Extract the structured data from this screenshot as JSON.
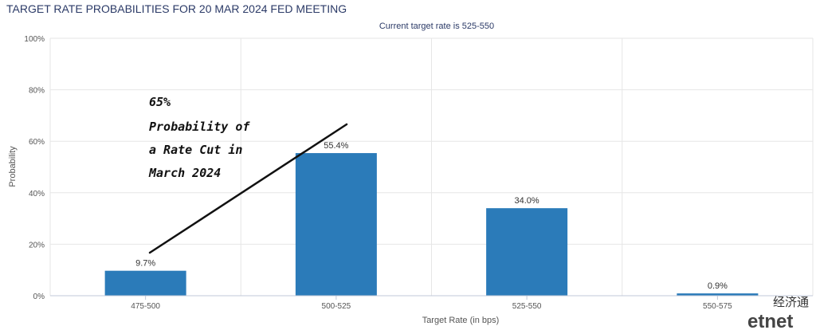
{
  "chart_data": {
    "type": "bar",
    "title": "TARGET RATE PROBABILITIES FOR 20 MAR 2024 FED MEETING",
    "subtitle": "Current target rate is 525-550",
    "xlabel": "Target Rate (in bps)",
    "ylabel": "Probability",
    "categories": [
      "475-500",
      "500-525",
      "525-550",
      "550-575"
    ],
    "values": [
      9.7,
      55.4,
      34.0,
      0.9
    ],
    "data_labels": [
      "9.7%",
      "55.4%",
      "34.0%",
      "0.9%"
    ],
    "ylim": [
      0,
      100
    ],
    "y_ticks": [
      {
        "value": 0,
        "label": "0%"
      },
      {
        "value": 20,
        "label": "20%"
      },
      {
        "value": 40,
        "label": "40%"
      },
      {
        "value": 60,
        "label": "60%"
      },
      {
        "value": 80,
        "label": "80%"
      },
      {
        "value": 100,
        "label": "100%"
      }
    ],
    "grid": true,
    "bar_color": "#2b7bb9",
    "annotation": {
      "lines": [
        "65%",
        "Probability of",
        "a Rate Cut in",
        "March 2024"
      ]
    }
  },
  "watermark": {
    "chinese": "经济通",
    "brand": "etnet"
  }
}
